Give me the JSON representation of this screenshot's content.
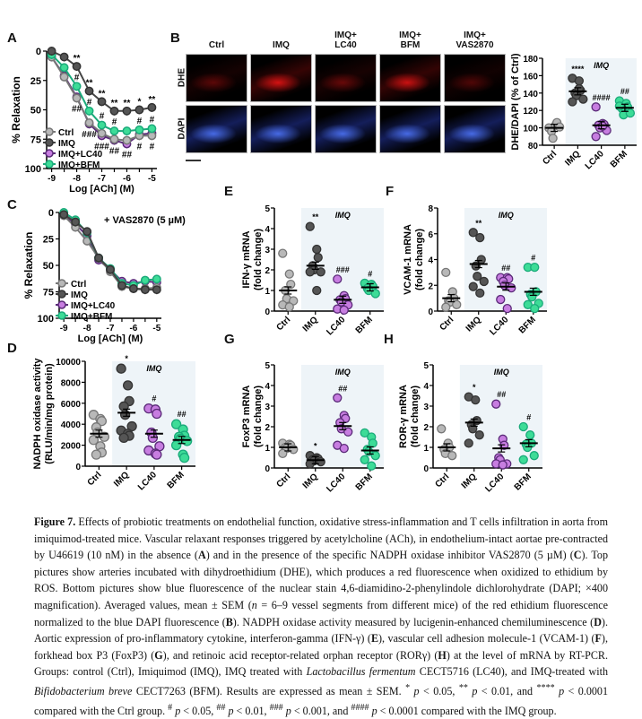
{
  "panel_labels": {
    "A": "A",
    "B": "B",
    "C": "C",
    "D": "D",
    "E": "E",
    "F": "F",
    "G": "G",
    "H": "H"
  },
  "groups": [
    "Ctrl",
    "IMQ",
    "LC40",
    "BFM"
  ],
  "legend": [
    "Ctrl",
    "IMQ",
    "IMQ+LC40",
    "IMQ+BFM"
  ],
  "colors": {
    "Ctrl": "#b8b8b8",
    "IMQ": "#555555",
    "LC40": "#c77de0",
    "BFM": "#3ddc97",
    "LC40_line": "#5a2a78",
    "BFM_line": "#1aaa7a",
    "shade": "#eef4f8"
  },
  "imq_band_label": "IMQ",
  "micrographs": {
    "columns": [
      "Ctrl",
      "IMQ",
      "IMQ+\nLC40",
      "IMQ+\nBFM",
      "IMQ+\nVAS2870"
    ],
    "rows": [
      "DHE",
      "DAPI"
    ]
  },
  "chart_data": [
    {
      "id": "A",
      "type": "line",
      "title": "",
      "xlabel": "Log [ACh] (M)",
      "ylabel": "% Relaxation",
      "x": [
        -9,
        -8.5,
        -8,
        -7.5,
        -7,
        -6.5,
        -6,
        -5.5,
        -5
      ],
      "xticks": [
        -9,
        -8,
        -7,
        -6,
        -5
      ],
      "yticks": [
        0,
        25,
        50,
        75,
        100
      ],
      "xlim": [
        -9.2,
        -4.8
      ],
      "ylim": [
        0,
        100
      ],
      "y_inverted": true,
      "series": [
        {
          "name": "Ctrl",
          "values": [
            5,
            22,
            40,
            61,
            70,
            75,
            76,
            72,
            72
          ]
        },
        {
          "name": "IMQ",
          "values": [
            0,
            5,
            13,
            34,
            43,
            51,
            51,
            50,
            48
          ]
        },
        {
          "name": "IMQ+LC40",
          "values": [
            5,
            21,
            39,
            62,
            72,
            76,
            79,
            71,
            70
          ]
        },
        {
          "name": "IMQ+BFM",
          "values": [
            3,
            14,
            30,
            51,
            63,
            68,
            68,
            67,
            66
          ]
        }
      ],
      "annotations_top": [
        "",
        "",
        "**",
        "**",
        "**",
        "**",
        "**",
        "*",
        "**"
      ],
      "annotations_bfm": [
        "",
        "",
        "#",
        "#",
        "#",
        "#",
        "",
        "#",
        "#"
      ],
      "annotations_bottom": [
        "",
        "",
        "##",
        "###",
        "###",
        "##",
        "##",
        "#",
        "#"
      ],
      "legend": "bottom-left"
    },
    {
      "id": "C",
      "type": "line",
      "title": "+ VAS2870 (5 µM)",
      "xlabel": "Log [ACh] (M)",
      "ylabel": "% Relaxation",
      "x": [
        -9,
        -8.5,
        -8,
        -7.5,
        -7,
        -6.5,
        -6,
        -5.5,
        -5
      ],
      "xticks": [
        -9,
        -8,
        -7,
        -6,
        -5
      ],
      "yticks": [
        0,
        25,
        50,
        75,
        100
      ],
      "xlim": [
        -9.2,
        -4.8
      ],
      "ylim": [
        0,
        100
      ],
      "y_inverted": true,
      "series": [
        {
          "name": "Ctrl",
          "values": [
            3,
            14,
            27,
            43,
            56,
            70,
            72,
            72,
            71
          ]
        },
        {
          "name": "IMQ",
          "values": [
            2,
            9,
            18,
            43,
            54,
            69,
            72,
            73,
            73
          ]
        },
        {
          "name": "IMQ+LC40",
          "values": [
            2,
            11,
            22,
            45,
            54,
            65,
            67,
            65,
            66
          ]
        },
        {
          "name": "IMQ+BFM",
          "values": [
            0,
            7,
            19,
            43,
            53,
            67,
            69,
            64,
            63
          ]
        }
      ],
      "legend": "bottom-left"
    },
    {
      "id": "B_quant",
      "type": "scatter",
      "ylabel": "DHE/DAPI (% of Ctrl)",
      "categories": [
        "Ctrl",
        "IMQ",
        "LC40",
        "BFM"
      ],
      "ylim": [
        80,
        180
      ],
      "yticks": [
        80,
        100,
        120,
        140,
        160,
        180
      ],
      "points": [
        [
          100,
          103,
          106,
          96,
          88,
          101
        ],
        [
          157,
          154,
          143,
          140,
          137,
          133,
          130,
          145
        ],
        [
          124,
          105,
          104,
          103,
          100,
          97,
          90,
          102
        ],
        [
          131,
          128,
          124,
          122,
          115,
          117,
          125
        ]
      ],
      "means": [
        100,
        142,
        103,
        123
      ],
      "annotations": [
        "",
        "****",
        "####",
        "##"
      ]
    },
    {
      "id": "D",
      "type": "scatter",
      "ylabel": "NADPH oxidase activity\n(RLU/min/mg protein)",
      "categories": [
        "Ctrl",
        "IMQ",
        "LC40",
        "BFM"
      ],
      "ylim": [
        0,
        10000
      ],
      "yticks": [
        0,
        2000,
        4000,
        6000,
        8000,
        10000
      ],
      "points": [
        [
          4900,
          4500,
          4300,
          3700,
          3200,
          2800,
          2500,
          1900,
          1300,
          1100
        ],
        [
          9300,
          7700,
          6200,
          5700,
          4900,
          3800,
          3400,
          3100,
          2900,
          2700
        ],
        [
          5500,
          5400,
          5000,
          3200,
          2700,
          1900,
          1500,
          1200,
          1100
        ],
        [
          4000,
          3500,
          2900,
          2800,
          2600,
          2400,
          2000,
          1100,
          800
        ]
      ],
      "means": [
        3100,
        5100,
        3100,
        2500
      ],
      "annotations": [
        "",
        "*",
        "#",
        "##"
      ]
    },
    {
      "id": "E",
      "type": "scatter",
      "ylabel": "IFN-γ mRNA\n(fold change)",
      "categories": [
        "Ctrl",
        "IMQ",
        "LC40",
        "BFM"
      ],
      "ylim": [
        0,
        5
      ],
      "yticks": [
        0,
        1,
        2,
        3,
        4,
        5
      ],
      "points": [
        [
          2.8,
          1.8,
          1.3,
          1.0,
          0.6,
          0.5,
          0.3,
          0.2
        ],
        [
          4.1,
          3.0,
          2.6,
          2.2,
          2.0,
          1.9,
          1.9,
          1.0
        ],
        [
          1.55,
          0.75,
          0.6,
          0.55,
          0.45,
          0.3,
          0.1,
          0.05
        ],
        [
          1.35,
          1.3,
          1.2,
          1.1,
          1.0,
          0.85
        ]
      ],
      "means": [
        1.0,
        2.2,
        0.55,
        1.15
      ],
      "annotations": [
        "",
        "**",
        "###",
        "#"
      ]
    },
    {
      "id": "F",
      "type": "scatter",
      "ylabel": "VCAM-1 mRNA\n(fold change)",
      "categories": [
        "Ctrl",
        "IMQ",
        "LC40",
        "BFM"
      ],
      "ylim": [
        0,
        8
      ],
      "yticks": [
        0,
        2,
        4,
        6,
        8
      ],
      "points": [
        [
          3.0,
          1.5,
          1.0,
          0.8,
          0.7,
          0.5,
          0.3
        ],
        [
          6.1,
          5.7,
          4.0,
          3.5,
          2.7,
          2.3,
          1.9,
          1.4
        ],
        [
          2.6,
          2.6,
          2.5,
          2.3,
          2.0,
          1.8,
          0.9,
          0.2
        ],
        [
          3.4,
          3.4,
          1.5,
          1.3,
          1.1,
          0.6,
          0.5,
          0.2
        ]
      ],
      "means": [
        1.0,
        3.65,
        1.9,
        1.5
      ],
      "annotations": [
        "",
        "**",
        "##",
        "#"
      ]
    },
    {
      "id": "G",
      "type": "scatter",
      "ylabel": "FoxP3 mRNA\n(fold change)",
      "categories": [
        "Ctrl",
        "IMQ",
        "LC40",
        "BFM"
      ],
      "ylim": [
        0,
        5
      ],
      "yticks": [
        0,
        1,
        2,
        3,
        4,
        5
      ],
      "points": [
        [
          1.2,
          1.15,
          1.1,
          1.0,
          0.95,
          0.9,
          0.7
        ],
        [
          0.6,
          0.5,
          0.45,
          0.4,
          0.35,
          0.3,
          0.2
        ],
        [
          3.4,
          2.55,
          2.4,
          2.2,
          1.9,
          1.75,
          1.1,
          0.95
        ],
        [
          1.7,
          1.5,
          1.2,
          0.9,
          0.8,
          0.6,
          0.4,
          0.1
        ]
      ],
      "means": [
        1.0,
        0.38,
        2.03,
        0.85
      ],
      "annotations": [
        "",
        "*",
        "##",
        ""
      ]
    },
    {
      "id": "H",
      "type": "scatter",
      "ylabel": "ROR-γ mRNA\n(fold change)",
      "categories": [
        "Ctrl",
        "IMQ",
        "LC40",
        "BFM"
      ],
      "ylim": [
        0,
        5
      ],
      "yticks": [
        0,
        1,
        2,
        3,
        4,
        5
      ],
      "points": [
        [
          1.9,
          1.2,
          1.0,
          0.9,
          0.7,
          0.6
        ],
        [
          3.45,
          3.3,
          2.3,
          2.1,
          1.9,
          1.6,
          1.2
        ],
        [
          3.1,
          1.4,
          1.1,
          0.5,
          0.4,
          0.2,
          0.2,
          0.15
        ],
        [
          2.0,
          1.6,
          1.2,
          1.15,
          1.0,
          0.6,
          0.4
        ]
      ],
      "means": [
        1.0,
        2.2,
        0.95,
        1.2
      ],
      "annotations": [
        "",
        "*",
        "##",
        "#"
      ]
    }
  ],
  "caption": {
    "figure_label": "Figure 7.",
    "text_html": " Effects of probiotic treatments on endothelial function, oxidative stress-inflammation and T cells infiltration in aorta from imiquimod-treated mice. Vascular relaxant responses triggered by acetylcholine (ACh), in endothelium-intact aortae pre-contracted by U46619 (10 nM) in the absence (<b>A</b>) and in the presence of the specific NADPH oxidase inhibitor VAS2870 (5 µM) (<b>C</b>). Top pictures show arteries incubated with dihydroethidium (DHE), which produces a red fluorescence when oxidized to ethidium by ROS. Bottom pictures show blue fluorescence of the nuclear stain 4,6-diamidino-2-phenylindole dichlorohydrate (DAPI; ×400 magnification). Averaged values, mean ± SEM (<i>n</i> = 6–9 vessel segments from different mice) of the red ethidium fluorescence normalized to the blue DAPI fluorescence (<b>B</b>). NADPH oxidase activity measured by lucigenin-enhanced chemiluminescence (<b>D</b>). Aortic expression of pro-inflammatory cytokine, interferon-gamma (IFN-γ) (<b>E</b>), vascular cell adhesion molecule-1 (VCAM-1) (<b>F</b>), forkhead box P3 (FoxP3) (<b>G</b>), and retinoic acid receptor-related orphan receptor (RORγ) (<b>H</b>) at the level of mRNA by RT-PCR. Groups: control (Ctrl), Imiquimod (IMQ), IMQ treated with <i>Lactobacillus fermentum</i> CECT5716 (LC40), and IMQ-treated with <i>Bifidobacterium breve</i> CECT7263 (BFM). Results are expressed as mean ± SEM. <sup>*</sup> <i>p</i> &lt; 0.05, <sup>**</sup> <i>p</i> &lt; 0.01, and <sup>****</sup> <i>p</i> &lt; 0.0001 compared with the Ctrl group. <sup>#</sup> <i>p</i> &lt; 0.05, <sup>##</sup> <i>p</i> &lt; 0.01, <sup>###</sup> <i>p</i> &lt; 0.001, and <sup>####</sup> <i>p</i> &lt; 0.0001 compared with the IMQ group."
  }
}
